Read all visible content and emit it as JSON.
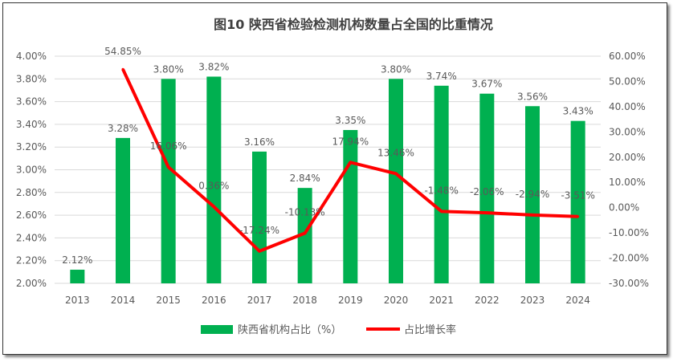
{
  "chart_data": {
    "type": "bar+line",
    "title": "图10   陕西省检验检测机构数量占全国的比重情况",
    "categories": [
      "2013",
      "2014",
      "2015",
      "2016",
      "2017",
      "2018",
      "2019",
      "2020",
      "2021",
      "2022",
      "2023",
      "2024"
    ],
    "series": [
      {
        "name": "陕西省机构占比（%）",
        "type": "bar",
        "axis": "left",
        "color": "#00B050",
        "values": [
          2.12,
          3.28,
          3.8,
          3.82,
          3.16,
          2.84,
          3.35,
          3.8,
          3.74,
          3.67,
          3.56,
          3.43
        ],
        "labels": [
          "2.12%",
          "3.28%",
          "3.80%",
          "3.82%",
          "3.16%",
          "2.84%",
          "3.35%",
          "3.80%",
          "3.74%",
          "3.67%",
          "3.56%",
          "3.43%"
        ]
      },
      {
        "name": "占比增长率",
        "type": "line",
        "axis": "right",
        "color": "#FF0000",
        "values": [
          null,
          54.85,
          16.06,
          0.36,
          -17.24,
          -10.13,
          17.94,
          13.46,
          -1.48,
          -2.06,
          -2.94,
          -3.51
        ],
        "labels": [
          "",
          "54.85%",
          "16.06%",
          "0.36%",
          "-17.24%",
          "-10.13%",
          "17.94%",
          "13.46%",
          "-1.48%",
          "-2.06%",
          "-2.94%",
          "-3.51%"
        ]
      }
    ],
    "y_left": {
      "range": [
        2.0,
        4.0
      ],
      "ticks": [
        "2.00%",
        "2.20%",
        "2.40%",
        "2.60%",
        "2.80%",
        "3.00%",
        "3.20%",
        "3.40%",
        "3.60%",
        "3.80%",
        "4.00%"
      ]
    },
    "y_right": {
      "range": [
        -30,
        60
      ],
      "ticks": [
        "-30.00%",
        "-20.00%",
        "-10.00%",
        "0.00%",
        "10.00%",
        "20.00%",
        "30.00%",
        "40.00%",
        "50.00%",
        "60.00%"
      ]
    },
    "grid": true,
    "legend": "bottom"
  }
}
